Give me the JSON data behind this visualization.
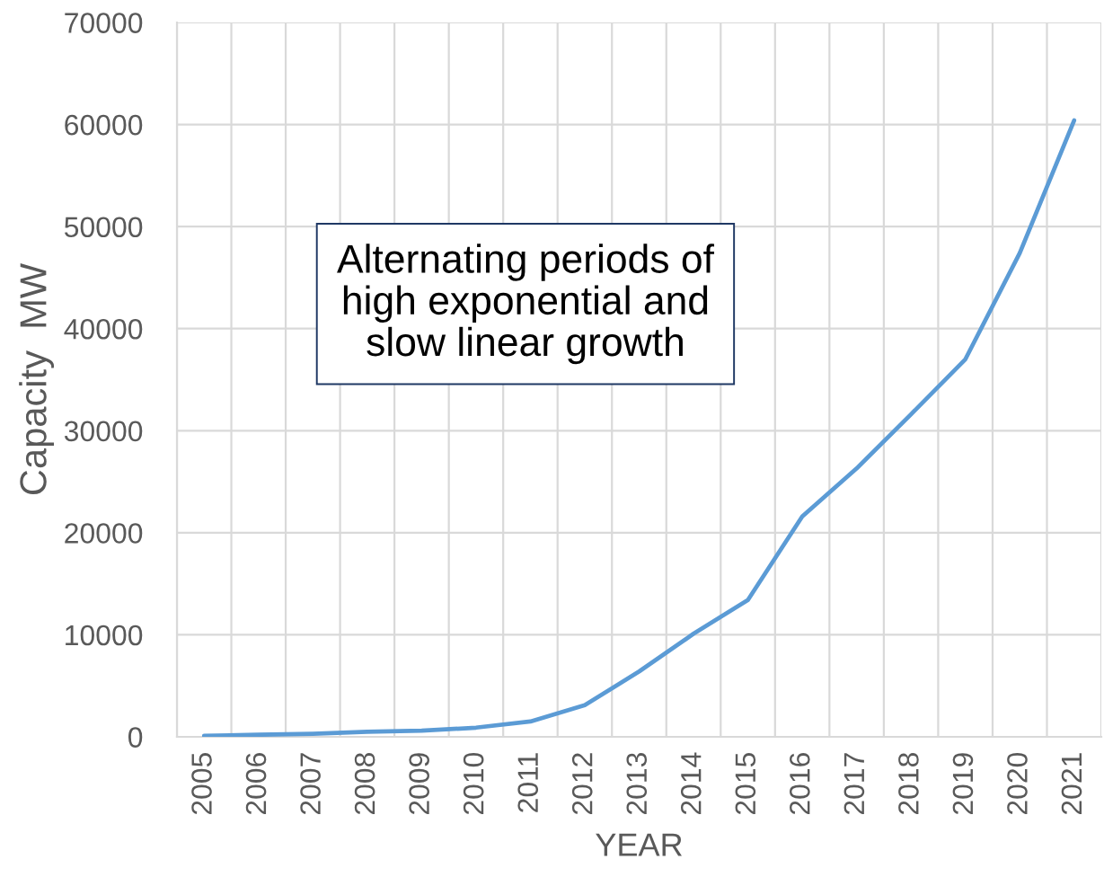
{
  "chart_data": {
    "type": "line",
    "xlabel": "YEAR",
    "ylabel": "Capacity  MW",
    "categories": [
      "2005",
      "2006",
      "2007",
      "2008",
      "2009",
      "2010",
      "2011",
      "2012",
      "2013",
      "2014",
      "2015",
      "2016",
      "2017",
      "2018",
      "2019",
      "2020",
      "2021"
    ],
    "series": [
      {
        "color": "#5b9bd5",
        "values": [
          100,
          200,
          300,
          500,
          600,
          900,
          1500,
          3100,
          6400,
          10100,
          13400,
          21600,
          26300,
          31600,
          37000,
          47400,
          60400
        ]
      }
    ],
    "ylim": [
      0,
      70000
    ],
    "yticks": [
      0,
      10000,
      20000,
      30000,
      40000,
      50000,
      60000,
      70000
    ],
    "grid": true,
    "marker": "none",
    "line_style": "solid",
    "annotations": [
      "Alternating periods of\nhigh exponential and\nslow linear growth"
    ]
  }
}
